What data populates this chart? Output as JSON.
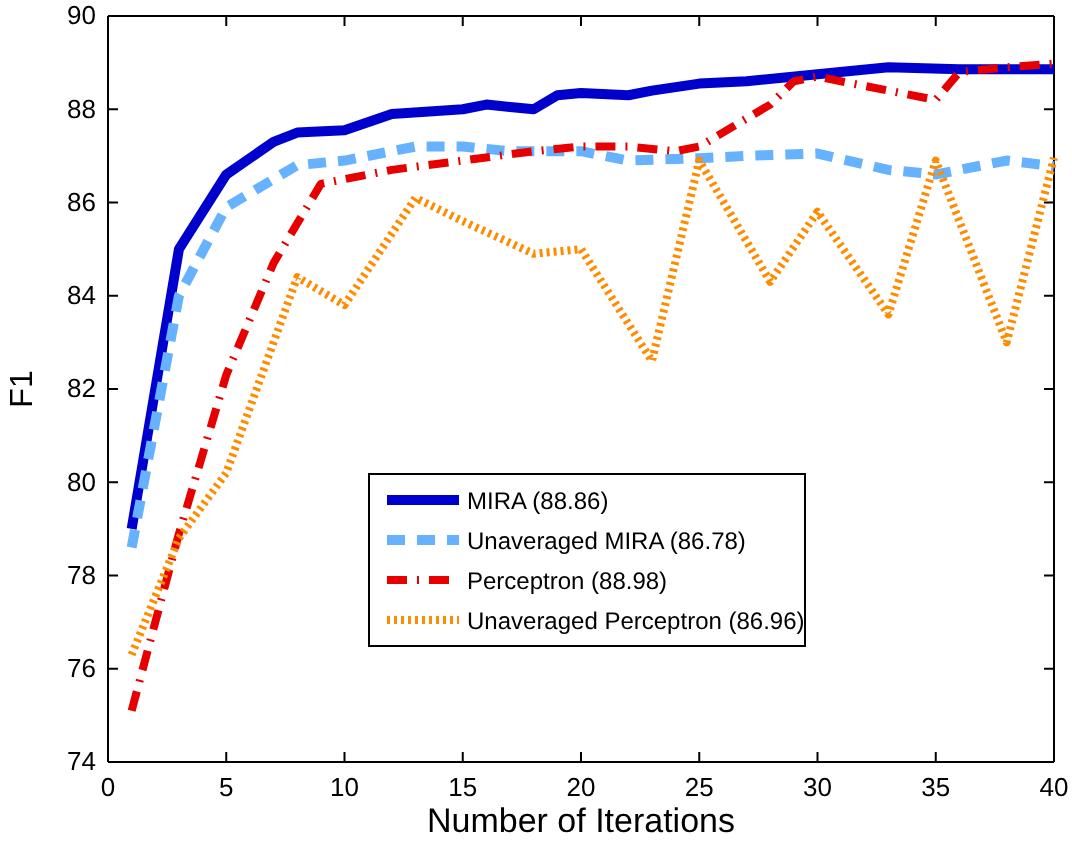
{
  "chart_data": {
    "type": "line",
    "xlabel": "Number of Iterations",
    "ylabel": "F1",
    "xlim": [
      0,
      40
    ],
    "ylim": [
      74,
      90
    ],
    "xticks": [
      0,
      5,
      10,
      15,
      20,
      25,
      30,
      35,
      40
    ],
    "yticks": [
      74,
      76,
      78,
      80,
      82,
      84,
      86,
      88,
      90
    ],
    "legend": "bottom",
    "grid": false,
    "series": [
      {
        "name": "MIRA (88.86)",
        "color": "#0000cc",
        "line_style": "solid",
        "x": [
          1,
          3,
          5,
          7,
          8,
          10,
          12,
          15,
          16,
          17,
          18,
          19,
          20,
          22,
          23,
          25,
          27,
          30,
          33,
          36,
          40
        ],
        "values": [
          79.0,
          85.0,
          86.6,
          87.3,
          87.5,
          87.55,
          87.9,
          88.0,
          88.1,
          88.05,
          88.0,
          88.3,
          88.35,
          88.3,
          88.4,
          88.55,
          88.6,
          88.75,
          88.9,
          88.86,
          88.86
        ]
      },
      {
        "name": "Unaveraged MIRA (86.78)",
        "color": "#66b2ff",
        "line_style": "dashed",
        "x": [
          1,
          3,
          5,
          7,
          8,
          10,
          12,
          13,
          15,
          17,
          19,
          20,
          22,
          25,
          27,
          30,
          33,
          35,
          38,
          40
        ],
        "values": [
          78.6,
          84.0,
          85.9,
          86.5,
          86.8,
          86.9,
          87.1,
          87.2,
          87.2,
          87.1,
          87.1,
          87.1,
          86.9,
          86.95,
          87.0,
          87.05,
          86.7,
          86.6,
          86.9,
          86.78
        ]
      },
      {
        "name": "Perceptron (88.98)",
        "color": "#e60000",
        "line_style": "dashdot",
        "x": [
          1,
          3,
          5,
          7,
          9,
          12,
          15,
          18,
          20,
          22,
          24,
          25,
          28,
          29,
          30,
          33,
          35,
          36,
          38,
          40
        ],
        "values": [
          75.1,
          78.9,
          82.3,
          84.7,
          86.4,
          86.7,
          86.9,
          87.1,
          87.2,
          87.2,
          87.1,
          87.2,
          88.1,
          88.6,
          88.7,
          88.4,
          88.2,
          88.8,
          88.9,
          88.98
        ]
      },
      {
        "name": "Unaveraged Perceptron (86.96)",
        "color": "#ff8c00",
        "line_style": "dotted",
        "x": [
          1,
          3,
          5,
          8,
          10,
          13,
          15,
          18,
          20,
          23,
          25,
          28,
          30,
          33,
          35,
          38,
          40
        ],
        "values": [
          76.3,
          78.8,
          80.2,
          84.4,
          83.8,
          86.1,
          85.6,
          84.9,
          85.0,
          82.6,
          86.9,
          84.3,
          85.8,
          83.6,
          86.9,
          83.0,
          86.96
        ]
      }
    ]
  }
}
